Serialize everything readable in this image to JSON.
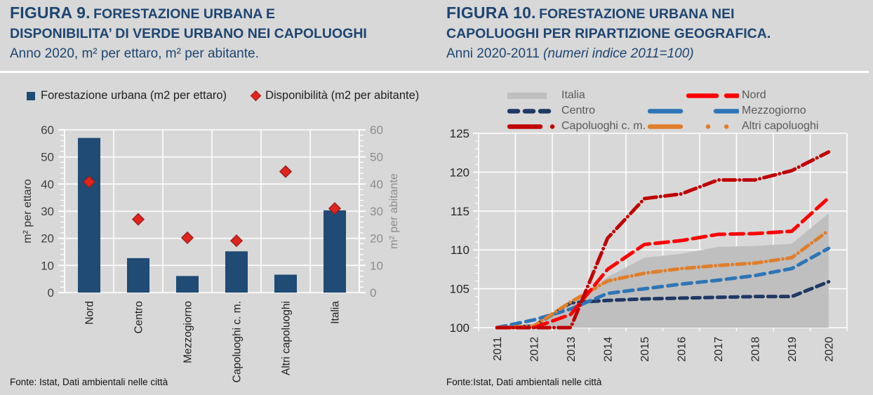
{
  "page": {
    "background": "#D8D8D8",
    "accent_navy": "#1E4571"
  },
  "figura9": {
    "title_prefix": "FIGURA 9.",
    "title_line1": "FORESTAZIONE URBANA E",
    "title_line2": "DISPONIBILITA’ DI VERDE URBANO NEI CAPOLUOGHI",
    "subtitle": "Anno 2020, m² per ettaro, m² per abitante.",
    "legend": {
      "bar_label": "Forestazione urbana  (m2 per ettaro)",
      "diamond_label": "Disponibilità (m2 per abitante)"
    },
    "footer": "Fonte: Istat, Dati ambientali nelle città"
  },
  "figura10": {
    "title_prefix": "FIGURA 10.",
    "title_line1": "FORESTAZIONE URBANA NEI",
    "title_line2": "CAPOLUOGHI PER RIPARTIZIONE GEOGRAFICA.",
    "subtitle_normal": "Anni 2020-2011 ",
    "subtitle_italic": "(numeri indice 2011=100)",
    "footer": "Fonte:Istat, Dati ambientali nelle città"
  },
  "chart_data": [
    {
      "id": "figura9",
      "type": "bar",
      "title": "Forestazione urbana e disponibilita' di verde urbano nei capoluoghi - Anno 2020",
      "categories": [
        "Nord",
        "Centro",
        "Mezzogiorno",
        "Capoluoghi c. m.",
        "Altri capoluoghi",
        "Italia"
      ],
      "series": [
        {
          "name": "Forestazione urbana (m2 per ettaro)",
          "type": "bar",
          "color": "#1F4B74",
          "values": [
            57,
            12.7,
            6.1,
            15.2,
            6.6,
            30.3
          ]
        },
        {
          "name": "Disponibilità (m2 per abitante)",
          "type": "scatter",
          "marker": "diamond",
          "color": "#E0251C",
          "border_color": "#9C1F1F",
          "values": [
            40.8,
            27,
            20.2,
            19.1,
            44.6,
            31
          ]
        }
      ],
      "ylabel_left": "m² per ettaro",
      "ylabel_right": "m² per abitante",
      "ylim": [
        0,
        60
      ],
      "yticks": [
        0,
        10,
        20,
        30,
        40,
        50,
        60
      ],
      "grid": true,
      "legend_position": "top"
    },
    {
      "id": "figura10",
      "type": "line",
      "title": "Forestazione urbana nei capoluoghi per ripartizione geografica - Anni 2020-2011 (numeri indice 2011=100)",
      "x": [
        2011,
        2012,
        2013,
        2014,
        2015,
        2016,
        2017,
        2018,
        2019,
        2020
      ],
      "series": [
        {
          "name": "Italia",
          "type": "area",
          "color": "#BFBFBF",
          "values": [
            100,
            100,
            103,
            106.5,
            109,
            109.5,
            110.4,
            110.5,
            110.8,
            114.7
          ]
        },
        {
          "name": "Centro",
          "type": "line",
          "color": "#1F3864",
          "dash": "11 7",
          "values": [
            100,
            100.2,
            103.2,
            103.5,
            103.7,
            103.8,
            103.9,
            104,
            104,
            105.9
          ]
        },
        {
          "name": "Mezzogiorno",
          "type": "line",
          "color": "#2E75B6",
          "dash": "13 8",
          "values": [
            100,
            101,
            102.4,
            104.4,
            105,
            105.6,
            106.1,
            106.7,
            107.6,
            110.2
          ]
        },
        {
          "name": "Altri capoluoghi",
          "type": "line",
          "color": "#E07E2B",
          "dash": "12 6 0.1 6",
          "values": [
            100,
            100.2,
            103.3,
            106,
            107,
            107.6,
            108,
            108.3,
            109,
            112.5
          ]
        },
        {
          "name": "Nord",
          "type": "line",
          "color": "#FF0000",
          "dash": "19 8",
          "values": [
            100,
            100,
            101.7,
            107.5,
            110.7,
            111.2,
            112,
            112.1,
            112.4,
            116.7
          ]
        },
        {
          "name": "Capoluoghi c. m.",
          "type": "line",
          "color": "#C00000",
          "dash": "17 6 0.1 6",
          "values": [
            100,
            100,
            100,
            111.5,
            116.6,
            117.2,
            119,
            119,
            120.2,
            122.6
          ]
        }
      ],
      "legend_rows": [
        [
          "Italia",
          "Nord"
        ],
        [
          "Centro",
          "Mezzogiorno"
        ],
        [
          "Capoluoghi c. m.",
          "Altri capoluoghi"
        ]
      ],
      "ylim": [
        100,
        125
      ],
      "yticks": [
        100,
        105,
        110,
        115,
        120,
        125
      ],
      "grid": true,
      "legend_position": "top"
    }
  ]
}
